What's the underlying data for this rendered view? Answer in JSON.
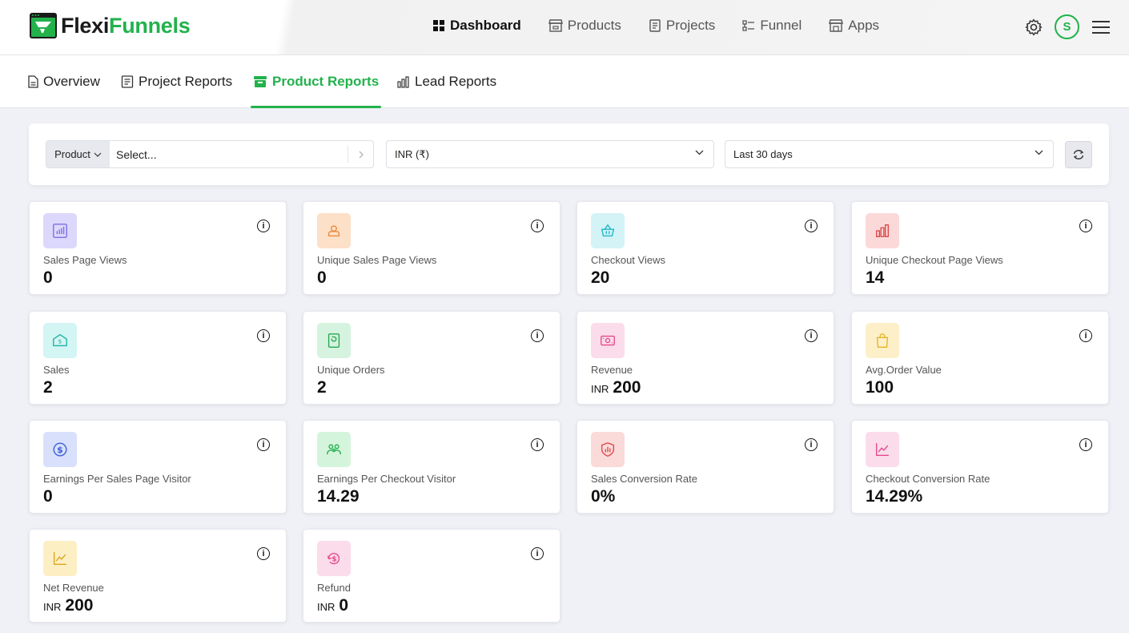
{
  "brand": {
    "part1": "Flexi",
    "part2": "Funnels"
  },
  "nav": {
    "items": [
      {
        "label": "Dashboard",
        "icon": "grid-icon",
        "active": true
      },
      {
        "label": "Products",
        "icon": "store-icon",
        "active": false
      },
      {
        "label": "Projects",
        "icon": "document-icon",
        "active": false
      },
      {
        "label": "Funnel",
        "icon": "funnel-icon",
        "active": false
      },
      {
        "label": "Apps",
        "icon": "apps-store-icon",
        "active": false
      }
    ],
    "avatar_initial": "S"
  },
  "tabs": [
    {
      "label": "Overview",
      "icon": "page-icon",
      "active": false
    },
    {
      "label": "Project Reports",
      "icon": "report-icon",
      "active": false
    },
    {
      "label": "Product Reports",
      "icon": "box-icon",
      "active": true
    },
    {
      "label": "Lead Reports",
      "icon": "bar-chart-icon",
      "active": false
    }
  ],
  "filters": {
    "product_label": "Product",
    "product_placeholder": "Select...",
    "currency": "INR (₹)",
    "date_range": "Last 30 days"
  },
  "cards": [
    {
      "label": "Sales Page Views",
      "value": "0",
      "unit": "",
      "icon": "bar-chart-icon",
      "icon_bg": "#dcd8fb",
      "icon_color": "#7b6ee6"
    },
    {
      "label": "Unique Sales Page Views",
      "value": "0",
      "unit": "",
      "icon": "user-icon",
      "icon_bg": "#fde0c8",
      "icon_color": "#e98a3a"
    },
    {
      "label": "Checkout Views",
      "value": "20",
      "unit": "",
      "icon": "basket-icon",
      "icon_bg": "#d4f3f7",
      "icon_color": "#20b6c8"
    },
    {
      "label": "Unique Checkout Page Views",
      "value": "14",
      "unit": "",
      "icon": "bar-chart-up-icon",
      "icon_bg": "#fbd9d9",
      "icon_color": "#e04848"
    },
    {
      "label": "Sales",
      "value": "2",
      "unit": "",
      "icon": "money-house-icon",
      "icon_bg": "#d3f5f3",
      "icon_color": "#1db3a6"
    },
    {
      "label": "Unique Orders",
      "value": "2",
      "unit": "",
      "icon": "receipt-icon",
      "icon_bg": "#d6f3df",
      "icon_color": "#26a850"
    },
    {
      "label": "Revenue",
      "value": "200",
      "unit": "INR",
      "icon": "cash-icon",
      "icon_bg": "#fbdcea",
      "icon_color": "#e44b8d"
    },
    {
      "label": "Avg.Order Value",
      "value": "100",
      "unit": "",
      "icon": "shopping-bag-icon",
      "icon_bg": "#fdf0c8",
      "icon_color": "#e2b528"
    },
    {
      "label": "Earnings Per Sales Page Visitor",
      "value": "0",
      "unit": "",
      "icon": "dollar-coin-icon",
      "icon_bg": "#d8e0fb",
      "icon_color": "#3c5fd8"
    },
    {
      "label": "Earnings Per Checkout Visitor",
      "value": "14.29",
      "unit": "",
      "icon": "users-group-icon",
      "icon_bg": "#d4f5dc",
      "icon_color": "#24b04e"
    },
    {
      "label": "Sales Conversion Rate",
      "value": "0%",
      "unit": "",
      "icon": "shield-chart-icon",
      "icon_bg": "#fbdada",
      "icon_color": "#e04848"
    },
    {
      "label": "Checkout Conversion Rate",
      "value": "14.29%",
      "unit": "",
      "icon": "line-chart-icon",
      "icon_bg": "#fbdcea",
      "icon_color": "#e44b8d"
    },
    {
      "label": "Net Revenue",
      "value": "200",
      "unit": "INR",
      "icon": "line-chart-icon",
      "icon_bg": "#fdefc4",
      "icon_color": "#d9a51c"
    },
    {
      "label": "Refund",
      "value": "0",
      "unit": "INR",
      "icon": "refund-icon",
      "icon_bg": "#fbdcea",
      "icon_color": "#e44b8d"
    }
  ]
}
